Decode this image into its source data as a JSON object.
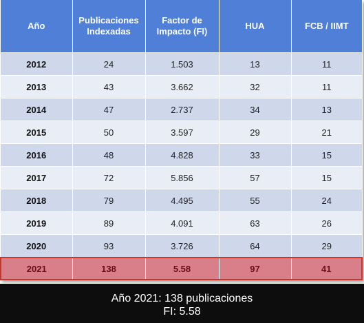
{
  "table": {
    "headers": [
      "Año",
      "Publicaciones Indexadas",
      "Factor de Impacto (FI)",
      "HUA",
      "FCB / IIMT"
    ],
    "rows": [
      [
        "2012",
        "24",
        "1.503",
        "13",
        "11"
      ],
      [
        "2013",
        "43",
        "3.662",
        "32",
        "11"
      ],
      [
        "2014",
        "47",
        "2.737",
        "34",
        "13"
      ],
      [
        "2015",
        "50",
        "3.597",
        "29",
        "21"
      ],
      [
        "2016",
        "48",
        "4.828",
        "33",
        "15"
      ],
      [
        "2017",
        "72",
        "5.856",
        "57",
        "15"
      ],
      [
        "2018",
        "79",
        "4.495",
        "55",
        "24"
      ],
      [
        "2019",
        "89",
        "4.091",
        "63",
        "26"
      ],
      [
        "2020",
        "93",
        "3.726",
        "64",
        "29"
      ],
      [
        "2021",
        "138",
        "5.58",
        "97",
        "41"
      ]
    ],
    "highlight_row_index": 9
  },
  "caption": {
    "line1": "Año 2021: 138 publicaciones",
    "line2": "FI: 5.58"
  },
  "colors": {
    "header_bg": "#4f7fd6",
    "row_odd": "#cfd7ea",
    "row_even": "#e9edf5",
    "highlight_bg": "#d97f8a",
    "highlight_border": "#c0392b",
    "caption_bg": "#0d0d0d"
  }
}
